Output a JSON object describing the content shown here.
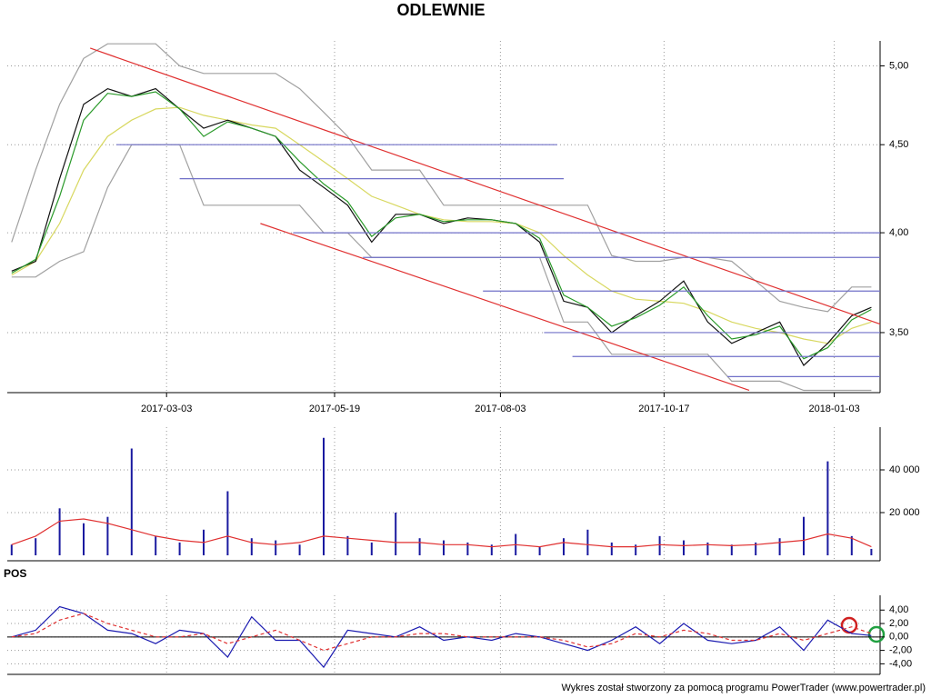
{
  "chart_data": [
    {
      "type": "line",
      "title": "ODLEWNIE",
      "log_scale": true,
      "grid": true,
      "x": [
        "2016-12-22",
        "2017-01-02",
        "2017-01-13",
        "2017-01-24",
        "2017-02-04",
        "2017-02-15",
        "2017-02-26",
        "2017-03-09",
        "2017-03-20",
        "2017-03-31",
        "2017-04-11",
        "2017-04-22",
        "2017-05-03",
        "2017-05-14",
        "2017-05-25",
        "2017-06-05",
        "2017-06-16",
        "2017-06-27",
        "2017-07-08",
        "2017-07-19",
        "2017-07-30",
        "2017-08-10",
        "2017-08-21",
        "2017-09-01",
        "2017-09-12",
        "2017-09-23",
        "2017-10-04",
        "2017-10-15",
        "2017-10-26",
        "2017-11-06",
        "2017-11-17",
        "2017-11-28",
        "2017-12-09",
        "2017-12-20",
        "2017-12-31",
        "2018-01-11",
        "2018-01-20"
      ],
      "xlim": [
        "2016-12-20",
        "2018-01-24"
      ],
      "xticks": [
        "2017-03-03",
        "2017-05-19",
        "2017-08-03",
        "2017-10-17",
        "2018-01-03"
      ],
      "ylim": [
        3.23,
        5.17
      ],
      "yticks": [
        {
          "value": 3.5,
          "label": "3,50"
        },
        {
          "value": 4,
          "label": "4,00"
        },
        {
          "value": 4.5,
          "label": "4,50"
        },
        {
          "value": 5,
          "label": "5,00"
        }
      ],
      "series": [
        {
          "color": "#a0a0a0",
          "values": [
            3.95,
            4.35,
            4.75,
            5.05,
            5.15,
            5.15,
            5.15,
            5.0,
            4.95,
            4.95,
            4.95,
            4.95,
            4.85,
            4.7,
            4.55,
            4.35,
            4.35,
            4.35,
            4.15,
            4.15,
            4.15,
            4.15,
            4.15,
            4.15,
            4.15,
            3.88,
            3.85,
            3.85,
            3.87,
            3.87,
            3.85,
            3.75,
            3.65,
            3.62,
            3.6,
            3.72,
            3.72
          ]
        },
        {
          "color": "#a0a0a0",
          "values": [
            3.77,
            3.77,
            3.85,
            3.9,
            4.25,
            4.5,
            4.5,
            4.5,
            4.15,
            4.15,
            4.15,
            4.15,
            4.15,
            4.0,
            4.0,
            3.87,
            3.87,
            3.87,
            3.87,
            3.87,
            3.87,
            3.87,
            3.87,
            3.55,
            3.55,
            3.4,
            3.4,
            3.4,
            3.4,
            3.4,
            3.28,
            3.28,
            3.28,
            3.24,
            3.24,
            3.24,
            3.24
          ]
        },
        {
          "color": "#d8d860",
          "values": [
            3.78,
            3.85,
            4.05,
            4.35,
            4.55,
            4.65,
            4.72,
            4.73,
            4.68,
            4.65,
            4.62,
            4.6,
            4.5,
            4.4,
            4.3,
            4.2,
            4.15,
            4.1,
            4.07,
            4.06,
            4.06,
            4.05,
            4.0,
            3.88,
            3.78,
            3.7,
            3.66,
            3.65,
            3.64,
            3.6,
            3.55,
            3.52,
            3.5,
            3.47,
            3.45,
            3.52,
            3.55
          ]
        },
        {
          "color": "#111111",
          "values": [
            3.8,
            3.85,
            4.3,
            4.75,
            4.85,
            4.8,
            4.85,
            4.72,
            4.6,
            4.65,
            4.6,
            4.55,
            4.35,
            4.25,
            4.15,
            3.95,
            4.1,
            4.1,
            4.05,
            4.08,
            4.07,
            4.05,
            3.95,
            3.65,
            3.62,
            3.5,
            3.58,
            3.65,
            3.75,
            3.55,
            3.45,
            3.5,
            3.55,
            3.35,
            3.45,
            3.58,
            3.62
          ]
        },
        {
          "color": "#2a9a2a",
          "values": [
            3.79,
            3.86,
            4.2,
            4.65,
            4.82,
            4.8,
            4.83,
            4.72,
            4.55,
            4.64,
            4.6,
            4.55,
            4.4,
            4.27,
            4.17,
            3.98,
            4.08,
            4.1,
            4.06,
            4.07,
            4.07,
            4.05,
            3.97,
            3.68,
            3.62,
            3.53,
            3.57,
            3.63,
            3.72,
            3.58,
            3.47,
            3.49,
            3.53,
            3.38,
            3.43,
            3.56,
            3.61
          ]
        }
      ],
      "lines": [
        {
          "color": "#e03030",
          "x": [
            "2017-01-27",
            "2018-01-24"
          ],
          "values": [
            5.12,
            3.54
          ]
        },
        {
          "color": "#e03030",
          "x": [
            "2017-04-15",
            "2017-11-25"
          ],
          "values": [
            4.05,
            3.24
          ]
        },
        {
          "color": "#7070c8",
          "x": [
            "2017-02-08",
            "2017-08-29"
          ],
          "values": [
            4.5,
            4.5
          ]
        },
        {
          "color": "#7070c8",
          "x": [
            "2017-03-09",
            "2017-09-01"
          ],
          "values": [
            4.3,
            4.3
          ]
        },
        {
          "color": "#7070c8",
          "x": [
            "2017-04-30",
            "2018-01-24"
          ],
          "values": [
            4.0,
            4.0
          ]
        },
        {
          "color": "#7070c8",
          "x": [
            "2017-06-01",
            "2018-01-24"
          ],
          "values": [
            3.87,
            3.87
          ]
        },
        {
          "color": "#7070c8",
          "x": [
            "2017-07-26",
            "2018-01-24"
          ],
          "values": [
            3.7,
            3.7
          ]
        },
        {
          "color": "#7070c8",
          "x": [
            "2017-08-23",
            "2018-01-24"
          ],
          "values": [
            3.5,
            3.5
          ]
        },
        {
          "color": "#7070c8",
          "x": [
            "2017-09-05",
            "2018-01-24"
          ],
          "values": [
            3.39,
            3.39
          ]
        },
        {
          "color": "#7070c8",
          "x": [
            "2017-11-15",
            "2018-01-24"
          ],
          "values": [
            3.3,
            3.3
          ]
        }
      ]
    },
    {
      "type": "bar",
      "grid": true,
      "ylim": [
        0,
        60000
      ],
      "yticks": [
        {
          "value": 20000,
          "label": "20 000"
        },
        {
          "value": 40000,
          "label": "40 000"
        }
      ],
      "series": [
        {
          "type": "bar",
          "color": "#1a1aa0",
          "values": [
            5000,
            8000,
            22000,
            15000,
            18000,
            50000,
            9000,
            6000,
            12000,
            30000,
            8000,
            7000,
            5000,
            55000,
            9000,
            6000,
            20000,
            8000,
            7000,
            6000,
            5000,
            10000,
            4000,
            8000,
            12000,
            6000,
            5000,
            9000,
            7000,
            6000,
            5000,
            6000,
            8000,
            18000,
            44000,
            9000,
            3000
          ]
        },
        {
          "type": "line",
          "color": "#e03030",
          "values": [
            5000,
            9000,
            16000,
            17000,
            15000,
            12000,
            9000,
            7000,
            6000,
            9000,
            6000,
            5000,
            6000,
            9000,
            8000,
            7000,
            6000,
            6000,
            5000,
            5000,
            4000,
            5000,
            4000,
            6000,
            5000,
            4000,
            4000,
            5000,
            4500,
            5000,
            4500,
            5000,
            6000,
            7000,
            10000,
            8000,
            4000
          ]
        }
      ]
    },
    {
      "type": "line",
      "title": "POS",
      "grid": true,
      "ylim": [
        -5.3,
        6.2
      ],
      "yticks": [
        {
          "value": -4,
          "label": "-4,00"
        },
        {
          "value": -2,
          "label": "-2,00"
        },
        {
          "value": 0,
          "label": "0,00"
        },
        {
          "value": 2,
          "label": "2,00"
        },
        {
          "value": 4,
          "label": "4,00"
        }
      ],
      "series": [
        {
          "color": "#1a1ab0",
          "values": [
            0,
            1,
            4.5,
            3.5,
            1,
            0.5,
            -1,
            1,
            0.5,
            -3,
            3,
            -0.5,
            -0.5,
            -4.5,
            1,
            0.5,
            0,
            1.5,
            -0.5,
            0,
            -0.5,
            0.5,
            0,
            -1,
            -2,
            -0.5,
            1.5,
            -1,
            2,
            -0.5,
            -1,
            -0.5,
            1.5,
            -2,
            2.5,
            0.5,
            0.2
          ]
        },
        {
          "color": "#e03030",
          "dash": true,
          "values": [
            0,
            0.5,
            2.5,
            3.5,
            2,
            1,
            0,
            0,
            0.5,
            -1,
            0,
            1,
            -0.5,
            -2,
            -1,
            0,
            0,
            0.5,
            0.5,
            0,
            0,
            0,
            0,
            -0.5,
            -1.5,
            -1,
            0.5,
            0,
            1,
            0.5,
            -0.5,
            -0.5,
            0.5,
            -0.5,
            0.5,
            1.5,
            0.5
          ]
        }
      ]
    }
  ],
  "footer": "Wykres został stworzony za pomocą programu PowerTrader (www.powertrader.pl)"
}
